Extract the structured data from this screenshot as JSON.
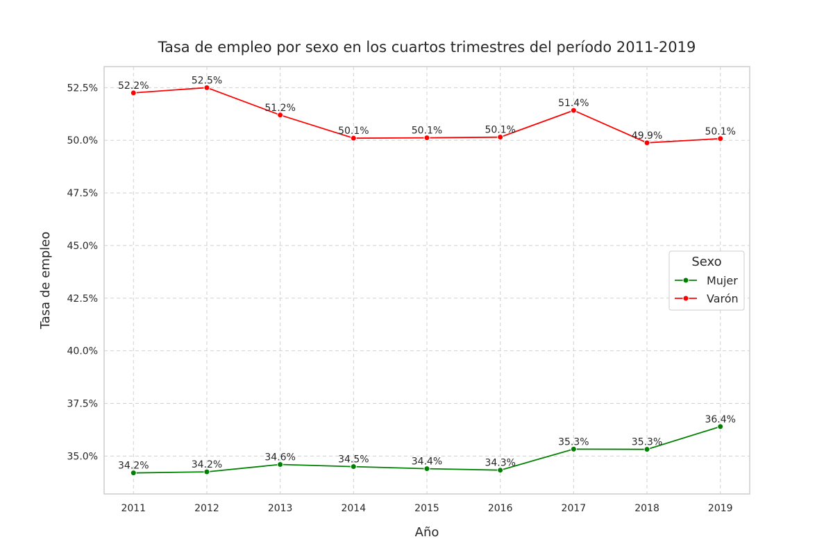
{
  "chart_data": {
    "type": "line",
    "title": "Tasa de empleo por sexo en los cuartos trimestres del período 2011-2019",
    "xlabel": "Año",
    "ylabel": "Tasa de empleo",
    "x": [
      2011,
      2012,
      2013,
      2014,
      2015,
      2016,
      2017,
      2018,
      2019
    ],
    "x_tick_labels": [
      "2011",
      "2012",
      "2013",
      "2014",
      "2015",
      "2016",
      "2017",
      "2018",
      "2019"
    ],
    "yticks": [
      35.0,
      37.5,
      40.0,
      42.5,
      45.0,
      47.5,
      50.0,
      52.5
    ],
    "y_tick_labels": [
      "35.0%",
      "37.5%",
      "40.0%",
      "42.5%",
      "45.0%",
      "47.5%",
      "50.0%",
      "52.5%"
    ],
    "ylim": [
      33.2,
      53.5
    ],
    "xlim": [
      2010.6,
      2019.4
    ],
    "grid": true,
    "grid_style": "dashed",
    "legend": {
      "title": "Sexo",
      "placement": "center-right"
    },
    "series": [
      {
        "name": "Mujer",
        "color": "#008000",
        "values": [
          34.2,
          34.25,
          34.6,
          34.5,
          34.4,
          34.33,
          35.33,
          35.32,
          36.4
        ],
        "labels": [
          "34.2%",
          "34.2%",
          "34.6%",
          "34.5%",
          "34.4%",
          "34.3%",
          "35.3%",
          "35.3%",
          "36.4%"
        ]
      },
      {
        "name": "Varón",
        "color": "#ff0000",
        "values": [
          52.25,
          52.5,
          51.2,
          50.1,
          50.12,
          50.15,
          51.42,
          49.88,
          50.08
        ],
        "labels": [
          "52.2%",
          "52.5%",
          "51.2%",
          "50.1%",
          "50.1%",
          "50.1%",
          "51.4%",
          "49.9%",
          "50.1%"
        ]
      }
    ]
  }
}
